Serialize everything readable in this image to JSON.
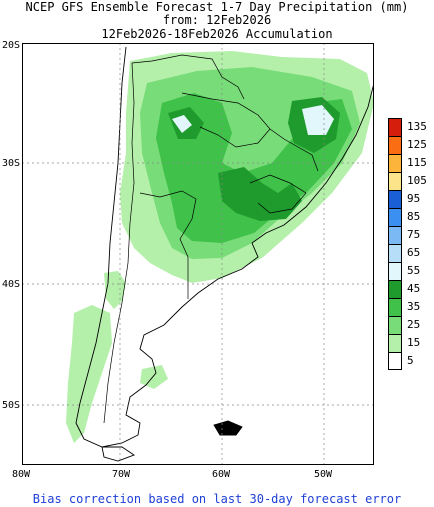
{
  "title": {
    "line1": "NCEP GFS Ensemble Forecast 1-7 Day Precipitation (mm)",
    "line2": "from: 12Feb2026",
    "line3": "12Feb2026-18Feb2026 Accumulation"
  },
  "axes": {
    "lat_labels": [
      "20S",
      "30S",
      "40S",
      "50S"
    ],
    "lon_labels": [
      "80W",
      "70W",
      "60W",
      "50W"
    ]
  },
  "legend": {
    "items": [
      {
        "label": "135",
        "color": "#d61e0c"
      },
      {
        "label": "125",
        "color": "#fa6d12"
      },
      {
        "label": "115",
        "color": "#fcb43a"
      },
      {
        "label": "105",
        "color": "#fbe48a"
      },
      {
        "label": "95",
        "color": "#1b5fd6"
      },
      {
        "label": "85",
        "color": "#3a8ff0"
      },
      {
        "label": "75",
        "color": "#7ab9f3"
      },
      {
        "label": "65",
        "color": "#b6def8"
      },
      {
        "label": "55",
        "color": "#e2f7fb"
      },
      {
        "label": "45",
        "color": "#1f9a2c"
      },
      {
        "label": "35",
        "color": "#3fc14a"
      },
      {
        "label": "25",
        "color": "#78dc78"
      },
      {
        "label": "15",
        "color": "#b4f0aa"
      },
      {
        "label": "5",
        "color": "#ffffff"
      }
    ]
  },
  "colors": {
    "land": "#ffffff",
    "ocean": "#ffffff",
    "footer_text": "#1f3fd6"
  },
  "footer": "Bias correction based on last 30-day forecast error"
}
